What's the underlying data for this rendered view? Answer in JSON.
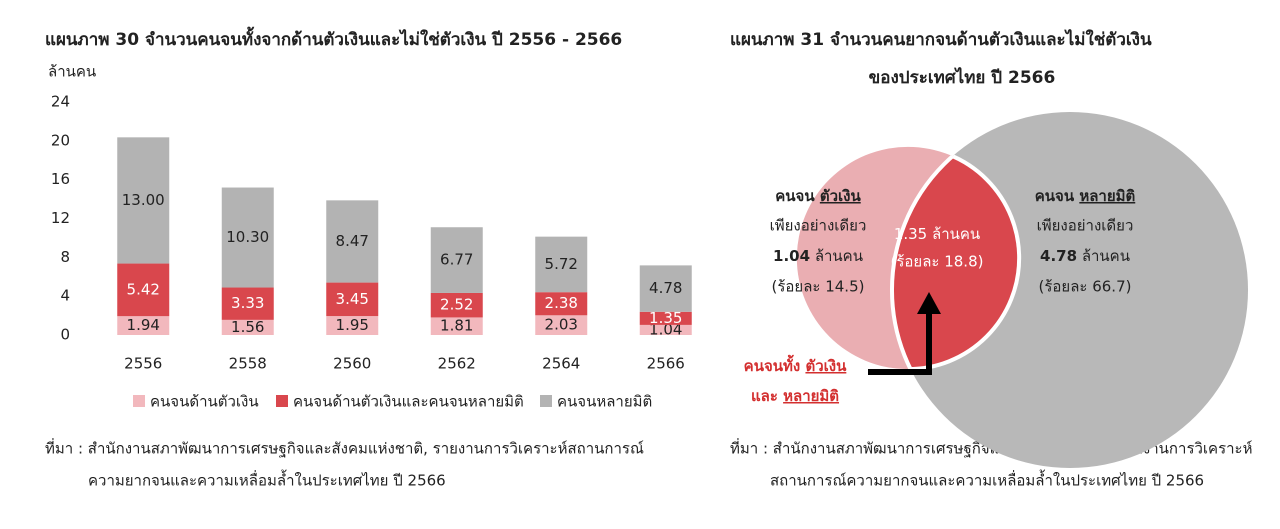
{
  "chart_data": [
    {
      "type": "stacked_bar",
      "title": "แผนภาพ  30  จำนวนคนจนทั้งจากด้านตัวเงินและไม่ใช่ตัวเงิน ปี 2556 - 2566",
      "y_label": "ล้านคน",
      "categories": [
        "2556",
        "2558",
        "2560",
        "2562",
        "2564",
        "2566"
      ],
      "series": [
        {
          "name": "คนจนด้านตัวเงิน",
          "color": "#f2b8bd",
          "label_color": "#222222",
          "values": [
            1.94,
            1.56,
            1.95,
            1.81,
            2.03,
            1.04
          ]
        },
        {
          "name": "คนจนด้านตัวเงินและคนจนหลายมิติ",
          "color": "#d9474d",
          "label_color": "#ffffff",
          "values": [
            5.42,
            3.33,
            3.45,
            2.52,
            2.38,
            1.35
          ]
        },
        {
          "name": "คนจนหลายมิติ",
          "color": "#b3b3b3",
          "label_color": "#222222",
          "values": [
            13.0,
            10.3,
            8.47,
            6.77,
            5.72,
            4.78
          ],
          "value_labels": [
            "13.00",
            "10.30",
            "8.47",
            "6.77",
            "5.72",
            "4.78"
          ]
        }
      ],
      "ylim": [
        0,
        24
      ],
      "yticks": [
        0,
        4,
        8,
        12,
        16,
        20,
        24
      ],
      "source": [
        "ที่มา : สำนักงานสภาพัฒนาการเศรษฐกิจและสังคมแห่งชาติ, รายงานการวิเคราะห์สถานการณ์",
        "ความยากจนและความเหลื่อมล้ำในประเทศไทย ปี 2566"
      ]
    },
    {
      "type": "venn",
      "title": [
        "แผนภาพ  31  จำนวนคนยากจนด้านตัวเงินและไม่ใช่ตัวเงิน",
        "ของประเทศไทย ปี 2566"
      ],
      "sets": [
        {
          "name": "คนจน",
          "name_em": "ตัวเงิน",
          "qualifier": "เพียงอย่างเดียว",
          "value": 1.04,
          "unit": "ล้านคน",
          "percent_label": "(ร้อยละ 14.5)",
          "color": "#eaaeb2"
        },
        {
          "name": "คนจน",
          "name_em": "หลายมิติ",
          "qualifier": "เพียงอย่างเดียว",
          "value": 4.78,
          "unit": "ล้านคน",
          "percent_label": "(ร้อยละ 66.7)",
          "color": "#b8b8b8"
        }
      ],
      "overlap": {
        "value": 1.35,
        "unit": "ล้านคน",
        "percent_label": "(ร้อยละ 18.8)",
        "color": "#d9474d"
      },
      "annotation": [
        [
          "คนจนทั้ง",
          "ตัวเงิน"
        ],
        [
          "และ",
          "หลายมิติ"
        ]
      ],
      "source": [
        "ที่มา : สำนักงานสภาพัฒนาการเศรษฐกิจและสังคมแห่งชาติ, รายงานการวิเคราะห์",
        "สถานการณ์ความยากจนและความเหลื่อมล้ำในประเทศไทย ปี 2566"
      ]
    }
  ]
}
